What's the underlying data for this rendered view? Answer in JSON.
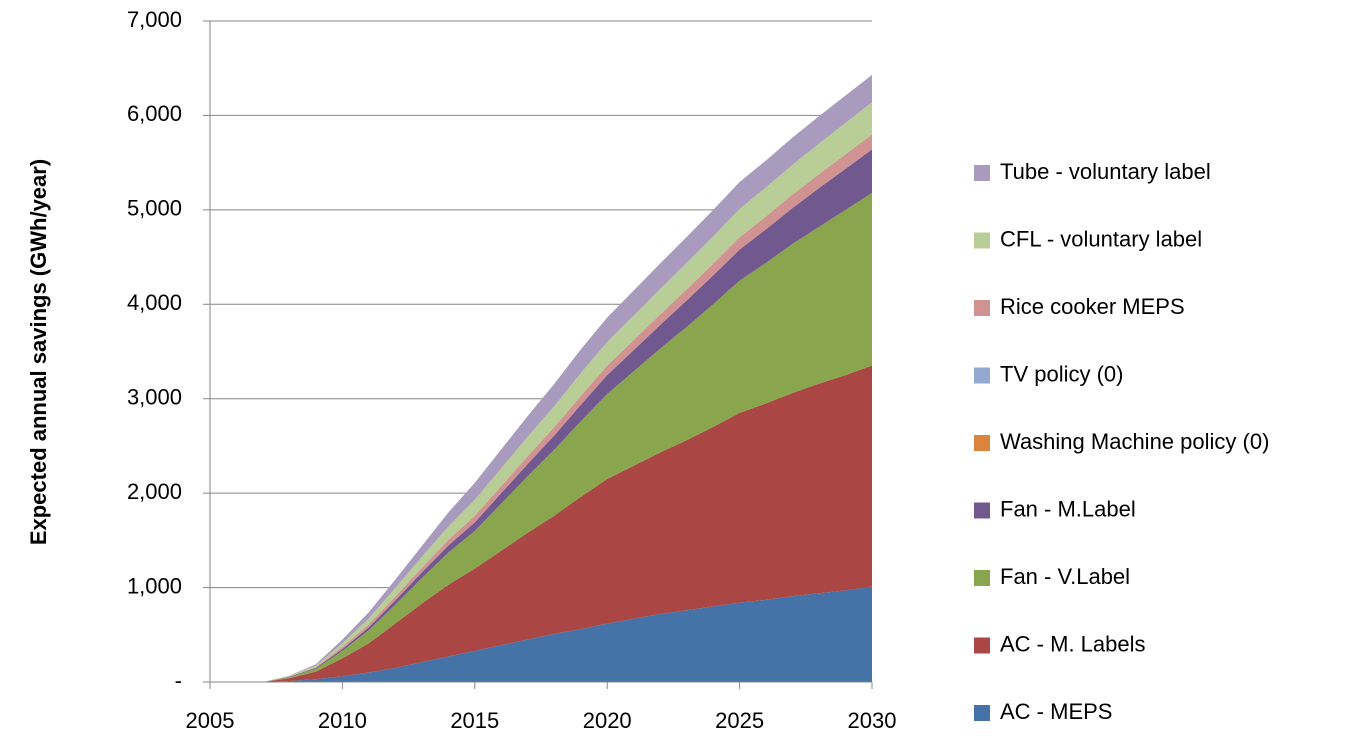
{
  "chart_data": {
    "type": "stacked_area",
    "ylabel": "Expected annual savings (GWh/year)",
    "x": [
      2005,
      2006,
      2007,
      2008,
      2009,
      2010,
      2011,
      2012,
      2013,
      2014,
      2015,
      2016,
      2017,
      2018,
      2019,
      2020,
      2021,
      2022,
      2023,
      2024,
      2025,
      2026,
      2027,
      2028,
      2029,
      2030
    ],
    "xlim": [
      2005,
      2030
    ],
    "xticks": [
      2005,
      2010,
      2015,
      2020,
      2025,
      2030
    ],
    "ylim": [
      0,
      7000
    ],
    "yticks": [
      {
        "value": 0,
        "label": "-"
      },
      {
        "value": 1000,
        "label": "1,000"
      },
      {
        "value": 2000,
        "label": "2,000"
      },
      {
        "value": 3000,
        "label": "3,000"
      },
      {
        "value": 4000,
        "label": "4,000"
      },
      {
        "value": 5000,
        "label": "5,000"
      },
      {
        "value": 6000,
        "label": "6,000"
      },
      {
        "value": 7000,
        "label": "7,000"
      }
    ],
    "grid": true,
    "legend": "right",
    "series": [
      {
        "name": "AC - MEPS",
        "color": "#4572a7",
        "values": [
          0,
          0,
          0,
          10,
          30,
          60,
          100,
          150,
          210,
          270,
          330,
          390,
          450,
          510,
          560,
          620,
          670,
          720,
          760,
          800,
          840,
          870,
          910,
          940,
          970,
          1010
        ]
      },
      {
        "name": "AC - M. Labels",
        "color": "#aa4643",
        "values": [
          0,
          0,
          0,
          30,
          80,
          190,
          310,
          470,
          620,
          760,
          870,
          1000,
          1130,
          1250,
          1400,
          1530,
          1620,
          1710,
          1800,
          1900,
          2010,
          2080,
          2150,
          2220,
          2280,
          2340
        ]
      },
      {
        "name": "Fan - V.Label",
        "color": "#89a54e",
        "values": [
          0,
          0,
          0,
          10,
          30,
          80,
          140,
          200,
          270,
          340,
          400,
          500,
          600,
          700,
          800,
          900,
          1000,
          1100,
          1200,
          1300,
          1400,
          1490,
          1580,
          1660,
          1750,
          1830
        ]
      },
      {
        "name": "Fan - M.Label",
        "color": "#71588f",
        "values": [
          0,
          0,
          0,
          5,
          10,
          20,
          30,
          45,
          60,
          75,
          90,
          110,
          130,
          150,
          175,
          200,
          225,
          250,
          280,
          305,
          330,
          355,
          380,
          410,
          435,
          460
        ]
      },
      {
        "name": "Washing Machine policy (0)",
        "color": "#db843d",
        "values": [
          0,
          0,
          0,
          0,
          0,
          0,
          0,
          0,
          0,
          0,
          0,
          0,
          0,
          0,
          0,
          0,
          0,
          0,
          0,
          0,
          0,
          0,
          0,
          0,
          0,
          0
        ]
      },
      {
        "name": "TV policy (0)",
        "color": "#93a9cf",
        "values": [
          0,
          0,
          0,
          0,
          0,
          0,
          0,
          0,
          0,
          0,
          0,
          0,
          0,
          0,
          0,
          0,
          0,
          0,
          0,
          0,
          0,
          0,
          0,
          0,
          0,
          0
        ]
      },
      {
        "name": "Rice cooker MEPS",
        "color": "#d19392",
        "values": [
          0,
          0,
          0,
          3,
          8,
          20,
          30,
          40,
          50,
          60,
          70,
          76,
          82,
          88,
          94,
          100,
          106,
          112,
          118,
          124,
          130,
          136,
          142,
          148,
          154,
          160
        ]
      },
      {
        "name": "CFL - voluntary label",
        "color": "#b9cd96",
        "values": [
          0,
          0,
          0,
          5,
          15,
          40,
          65,
          90,
          115,
          140,
          170,
          188,
          206,
          224,
          242,
          250,
          260,
          270,
          280,
          290,
          300,
          308,
          316,
          324,
          332,
          340
        ]
      },
      {
        "name": "Tube - voluntary label",
        "color": "#a99bbd",
        "values": [
          0,
          0,
          0,
          5,
          15,
          40,
          65,
          90,
          115,
          150,
          180,
          200,
          220,
          235,
          250,
          260,
          265,
          270,
          275,
          280,
          285,
          285,
          288,
          290,
          290,
          290
        ]
      }
    ]
  }
}
